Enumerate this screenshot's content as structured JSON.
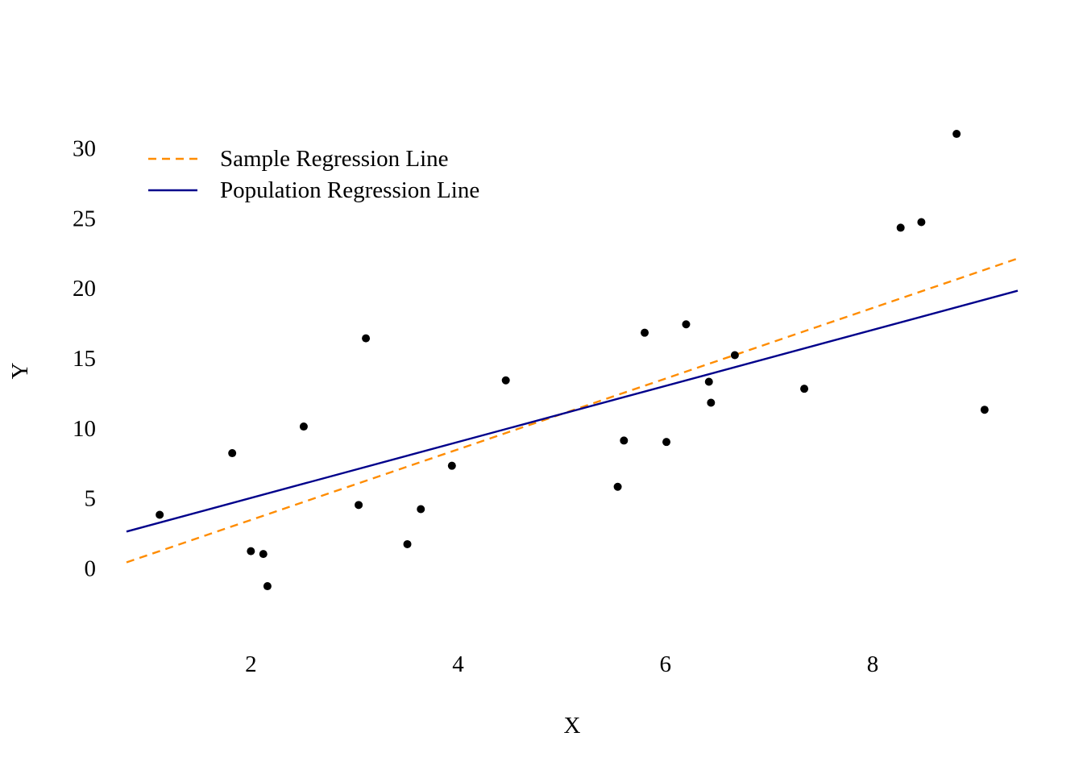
{
  "chart_data": {
    "type": "scatter",
    "title": "",
    "xlabel": "X",
    "ylabel": "Y",
    "xlim": [
      0.8,
      9.4
    ],
    "ylim": [
      -5.5,
      32.5
    ],
    "x_ticks": [
      2,
      4,
      6,
      8
    ],
    "y_ticks": [
      0,
      5,
      10,
      15,
      20,
      25,
      30
    ],
    "grid": false,
    "legend_position": "top-left",
    "points": {
      "color": "#000000",
      "x": [
        1.12,
        1.82,
        2.0,
        2.12,
        2.16,
        2.51,
        3.04,
        3.11,
        3.51,
        3.64,
        3.94,
        4.46,
        5.54,
        5.6,
        5.8,
        6.01,
        6.2,
        6.42,
        6.44,
        6.67,
        7.34,
        8.27,
        8.47,
        8.81,
        9.08
      ],
      "y": [
        3.8,
        8.2,
        1.2,
        1.0,
        -1.3,
        10.1,
        4.5,
        16.4,
        1.7,
        4.2,
        7.3,
        13.4,
        5.8,
        9.1,
        16.8,
        9.0,
        17.4,
        13.3,
        11.8,
        15.2,
        12.8,
        24.3,
        24.7,
        31.0,
        11.3
      ]
    },
    "series": [
      {
        "name": "Sample Regression Line",
        "style": "dashed",
        "color": "#FF8C00",
        "x": [
          0.8,
          9.4
        ],
        "y": [
          0.4,
          22.1
        ]
      },
      {
        "name": "Population Regression Line",
        "style": "solid",
        "color": "#00008B",
        "x": [
          0.8,
          9.4
        ],
        "y": [
          2.6,
          19.8
        ]
      }
    ]
  }
}
